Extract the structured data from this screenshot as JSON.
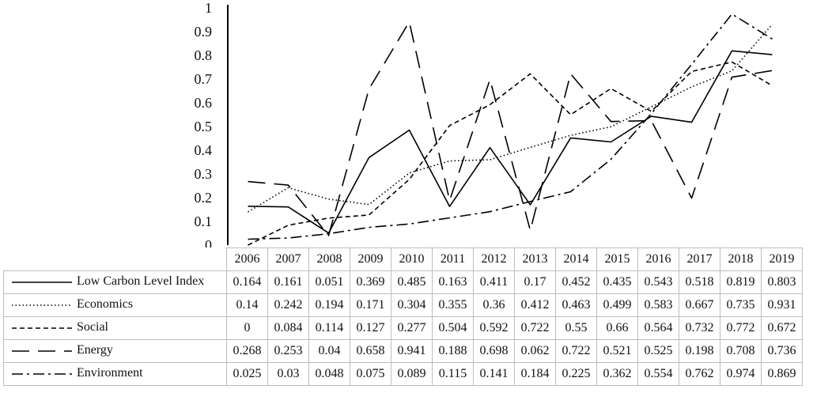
{
  "chart_data": {
    "type": "line",
    "categories": [
      "2006",
      "2007",
      "2008",
      "2009",
      "2010",
      "2011",
      "2012",
      "2013",
      "2014",
      "2015",
      "2016",
      "2017",
      "2018",
      "2019"
    ],
    "ylim": [
      0,
      1
    ],
    "yticks": [
      "0",
      "0.1",
      "0.2",
      "0.3",
      "0.4",
      "0.5",
      "0.6",
      "0.7",
      "0.8",
      "0.9",
      "1"
    ],
    "grid": false,
    "legend_placement": "data table rows below the plot",
    "title": "",
    "xlabel": "",
    "ylabel": "",
    "series": [
      {
        "name": "Low Carbon Level Index",
        "dash": "solid",
        "values": [
          0.164,
          0.161,
          0.051,
          0.369,
          0.485,
          0.163,
          0.411,
          0.17,
          0.452,
          0.435,
          0.543,
          0.518,
          0.819,
          0.803
        ],
        "labels": [
          "0.164",
          "0.161",
          "0.051",
          "0.369",
          "0.485",
          "0.163",
          "0.411",
          "0.17",
          "0.452",
          "0.435",
          "0.543",
          "0.518",
          "0.819",
          "0.803"
        ]
      },
      {
        "name": "Economics",
        "dash": "dotted",
        "values": [
          0.14,
          0.242,
          0.194,
          0.171,
          0.304,
          0.355,
          0.36,
          0.412,
          0.463,
          0.499,
          0.583,
          0.667,
          0.735,
          0.931
        ],
        "labels": [
          "0.14",
          "0.242",
          "0.194",
          "0.171",
          "0.304",
          "0.355",
          "0.36",
          "0.412",
          "0.463",
          "0.499",
          "0.583",
          "0.667",
          "0.735",
          "0.931"
        ]
      },
      {
        "name": "Social",
        "dash": "short-dash",
        "values": [
          0,
          0.084,
          0.114,
          0.127,
          0.277,
          0.504,
          0.592,
          0.722,
          0.55,
          0.66,
          0.564,
          0.732,
          0.772,
          0.672
        ],
        "labels": [
          "0",
          "0.084",
          "0.114",
          "0.127",
          "0.277",
          "0.504",
          "0.592",
          "0.722",
          "0.55",
          "0.66",
          "0.564",
          "0.732",
          "0.772",
          "0.672"
        ]
      },
      {
        "name": "Energy",
        "dash": "long-dash",
        "values": [
          0.268,
          0.253,
          0.04,
          0.658,
          0.941,
          0.188,
          0.698,
          0.062,
          0.722,
          0.521,
          0.525,
          0.198,
          0.708,
          0.736
        ],
        "labels": [
          "0.268",
          "0.253",
          "0.04",
          "0.658",
          "0.941",
          "0.188",
          "0.698",
          "0.062",
          "0.722",
          "0.521",
          "0.525",
          "0.198",
          "0.708",
          "0.736"
        ]
      },
      {
        "name": "Environment",
        "dash": "dash-dot",
        "values": [
          0.025,
          0.03,
          0.048,
          0.075,
          0.089,
          0.115,
          0.141,
          0.184,
          0.225,
          0.362,
          0.554,
          0.762,
          0.974,
          0.869
        ],
        "labels": [
          "0.025",
          "0.03",
          "0.048",
          "0.075",
          "0.089",
          "0.115",
          "0.141",
          "0.184",
          "0.225",
          "0.362",
          "0.554",
          "0.762",
          "0.974",
          "0.869"
        ]
      }
    ]
  },
  "colors": {
    "line": "#000000",
    "table_border": "#bdbdbd"
  }
}
